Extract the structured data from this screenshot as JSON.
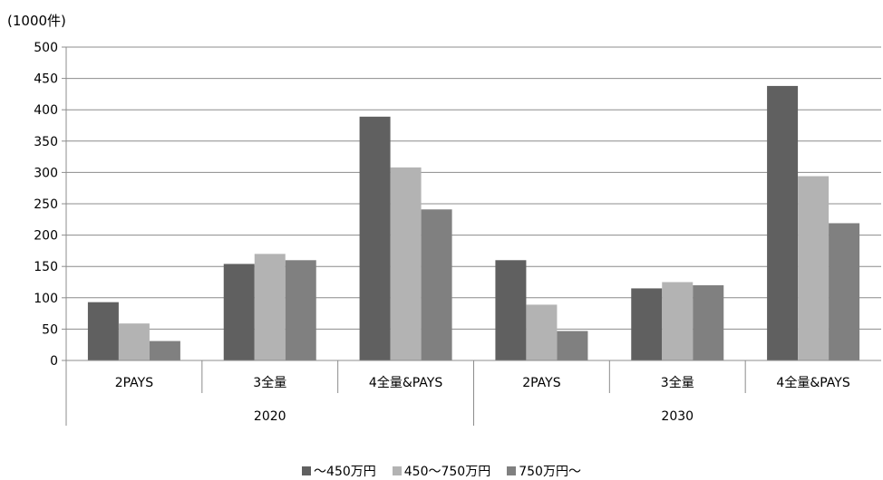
{
  "chart_data": {
    "type": "bar",
    "unit_label": "(1000件)",
    "groups": [
      {
        "label": "2020",
        "categories": [
          "2PAYS",
          "3全量",
          "4全量&PAYS"
        ]
      },
      {
        "label": "2030",
        "categories": [
          "2PAYS",
          "3全量",
          "4全量&PAYS"
        ]
      }
    ],
    "categories": [
      "2PAYS",
      "3全量",
      "4全量&PAYS",
      "2PAYS",
      "3全量",
      "4全量&PAYS"
    ],
    "series": [
      {
        "name": "～450万円",
        "color": "#606060",
        "values": [
          93,
          154,
          389,
          160,
          115,
          438
        ]
      },
      {
        "name": "450～750万円",
        "color": "#b3b3b3",
        "values": [
          59,
          170,
          308,
          89,
          125,
          294
        ]
      },
      {
        "name": "750万円～",
        "color": "#808080",
        "values": [
          31,
          160,
          241,
          47,
          120,
          219
        ]
      }
    ],
    "ylim": [
      0,
      500
    ],
    "yticks": [
      "0",
      "50",
      "100",
      "150",
      "200",
      "250",
      "300",
      "350",
      "400",
      "450",
      "500"
    ],
    "grid": true,
    "legend_position": "bottom"
  }
}
